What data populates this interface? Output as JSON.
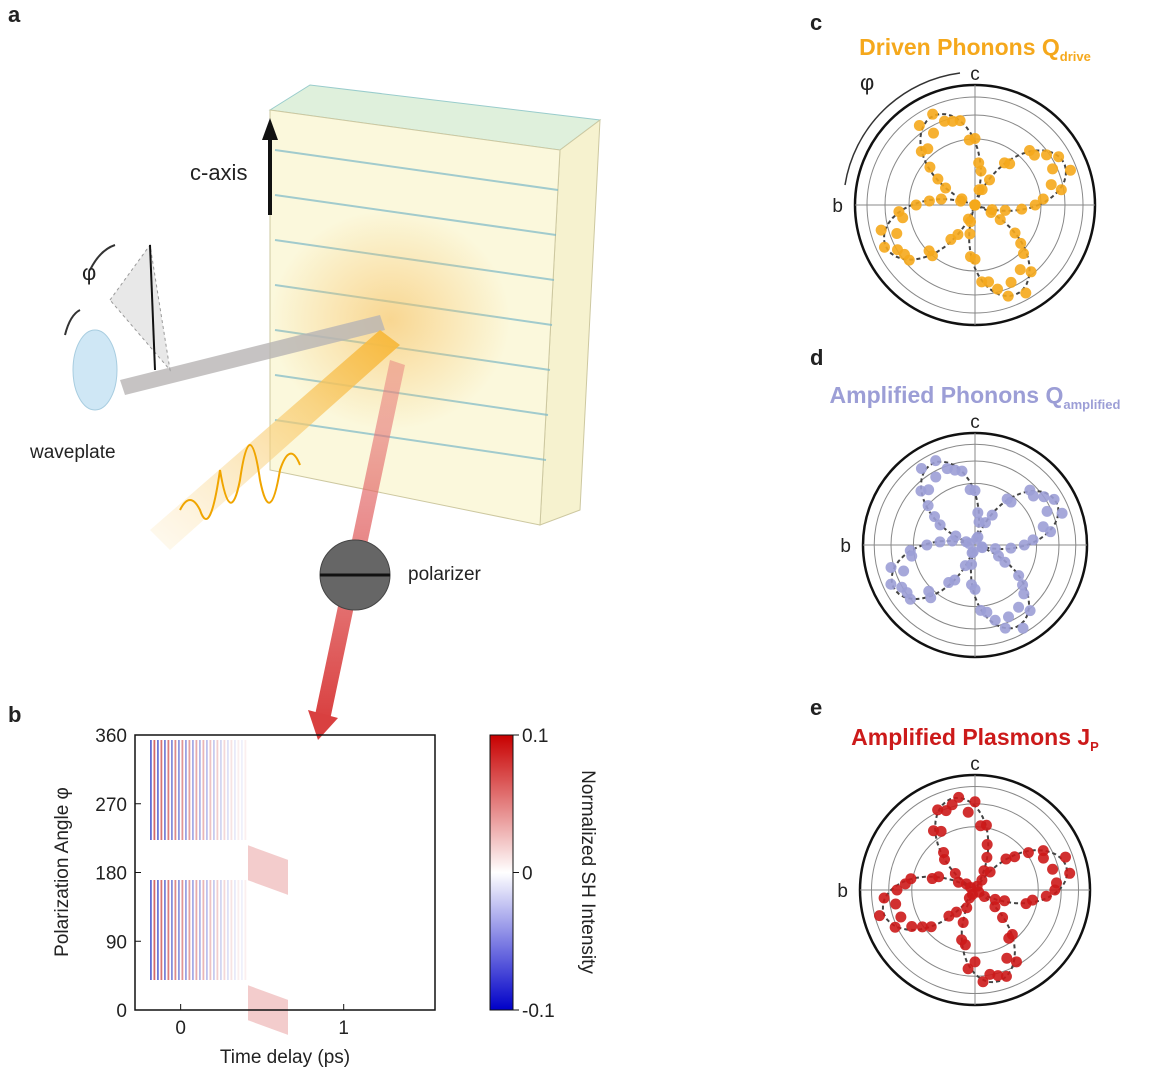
{
  "panel_a": {
    "label": "a",
    "c_axis": "c-axis",
    "phi": "φ",
    "waveplate": "waveplate",
    "polarizer": "polarizer"
  },
  "panel_b": {
    "label": "b",
    "xlabel": "Time delay (ps)",
    "ylabel": "Polarization Angle φ",
    "xlim": [
      -0.28,
      1.56
    ],
    "xticks": [
      0,
      1
    ],
    "ylim": [
      0,
      360
    ],
    "yticks": [
      0,
      90,
      180,
      270,
      360
    ],
    "colorbar": {
      "label": "Normalized SH Intensity",
      "lim": [
        -0.1,
        0.1
      ],
      "ticks": [
        -0.1,
        0,
        0.1
      ]
    }
  },
  "panel_c": {
    "label": "c",
    "title": "Driven Phonons Q",
    "subscript": "drive",
    "axis_c": "c",
    "axis_b": "b",
    "phi": "φ",
    "color": "#f5a81c"
  },
  "panel_d": {
    "label": "d",
    "title": "Amplified Phonons Q",
    "subscript": "amplified",
    "axis_c": "c",
    "axis_b": "b",
    "color": "#9c9ed6"
  },
  "panel_e": {
    "label": "e",
    "title": "Amplified Plasmons J",
    "subscript": "P",
    "axis_c": "c",
    "axis_b": "b",
    "color": "#cc1a1a"
  }
}
